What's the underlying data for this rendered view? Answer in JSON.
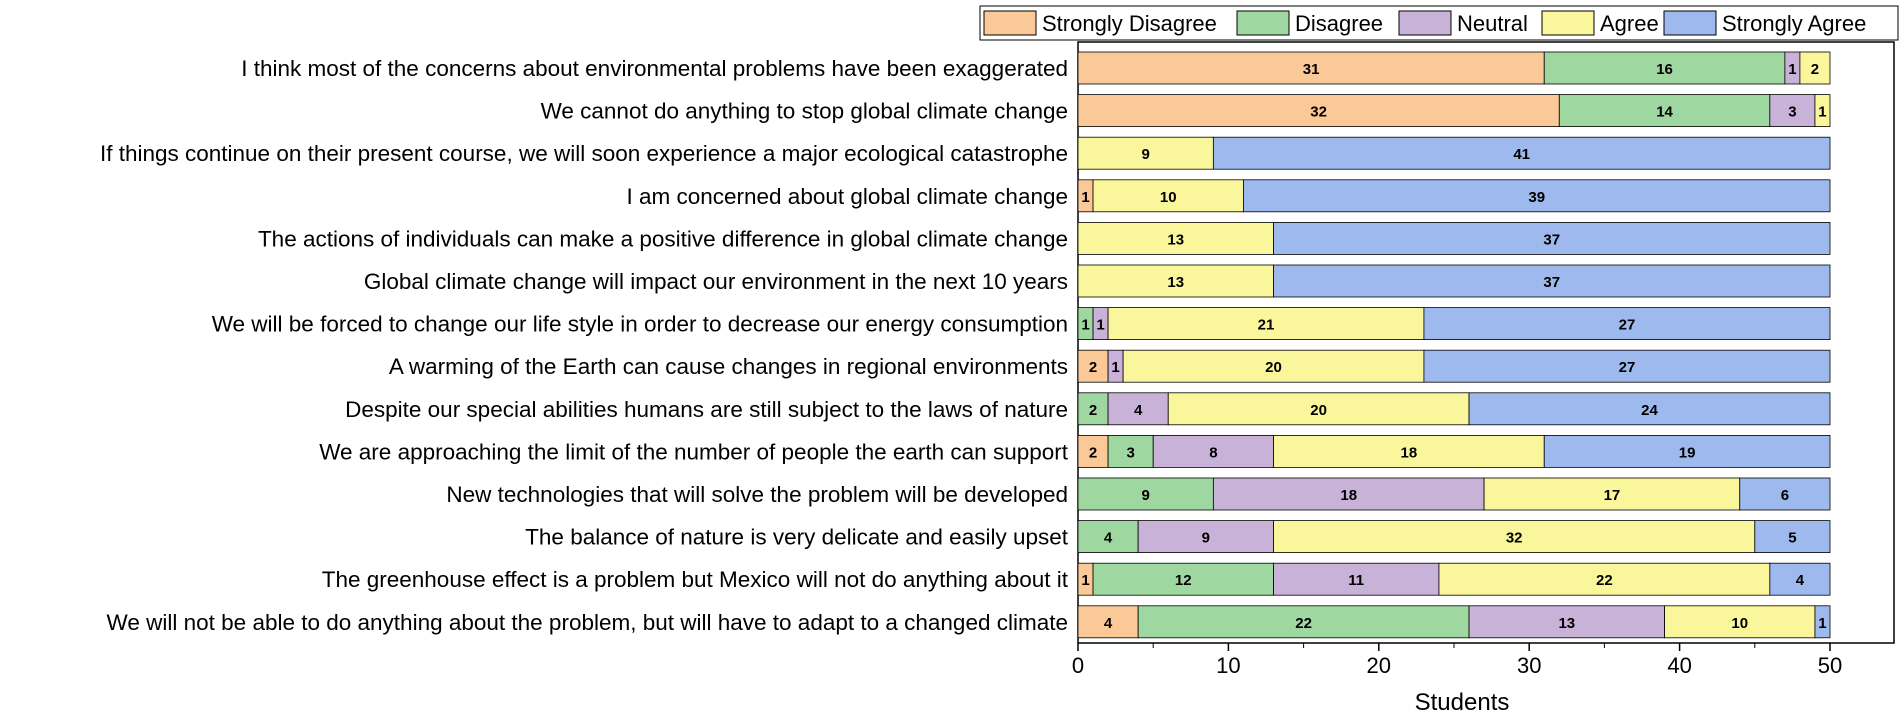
{
  "chart_data": {
    "type": "bar",
    "orientation": "horizontal",
    "stacked": true,
    "title": "",
    "xlabel": "Students",
    "ylabel": "",
    "xlim": [
      0,
      52
    ],
    "xticks": [
      0,
      10,
      20,
      30,
      40,
      50
    ],
    "legend_position": "top-right",
    "categories": [
      "I think most of the concerns about environmental problems have been exaggerated",
      "We cannot do anything to stop global climate change",
      "If things continue on their present course, we will soon experience a major ecological catastrophe",
      "I am concerned about global climate change",
      "The actions of individuals can make a positive difference in global climate change",
      "Global climate change will impact  our environment in the next 10 years",
      "We will be forced to change our life style in order to decrease our energy consumption",
      "A warming of the Earth can cause changes in regional environments",
      "Despite our special abilities humans are still subject to the laws of nature",
      "We are approaching the limit of the number of people the earth can support",
      "New technologies that will solve the problem will be developed",
      "The balance of nature is very delicate and easily upset",
      "The greenhouse effect is a problem but Mexico will not do anything about it",
      "We will not be able to do anything about the problem, but will have to adapt to a changed climate"
    ],
    "series": [
      {
        "name": "Strongly Disagree",
        "color": "#FBC898",
        "values": [
          31,
          32,
          0,
          1,
          0,
          0,
          0,
          2,
          0,
          2,
          0,
          0,
          1,
          4
        ]
      },
      {
        "name": "Disagree",
        "color": "#9FD7A0",
        "values": [
          16,
          14,
          0,
          0,
          0,
          0,
          1,
          0,
          2,
          3,
          9,
          4,
          12,
          22
        ]
      },
      {
        "name": "Neutral",
        "color": "#C9B2D8",
        "values": [
          1,
          3,
          0,
          0,
          0,
          0,
          1,
          1,
          4,
          8,
          18,
          9,
          11,
          13
        ]
      },
      {
        "name": "Agree",
        "color": "#FAF69B",
        "values": [
          2,
          1,
          9,
          10,
          13,
          13,
          21,
          20,
          20,
          18,
          17,
          32,
          22,
          10
        ]
      },
      {
        "name": "Strongly Agree",
        "color": "#9DB9EE",
        "values": [
          0,
          0,
          41,
          39,
          37,
          37,
          27,
          27,
          24,
          19,
          6,
          5,
          4,
          1
        ]
      }
    ]
  }
}
